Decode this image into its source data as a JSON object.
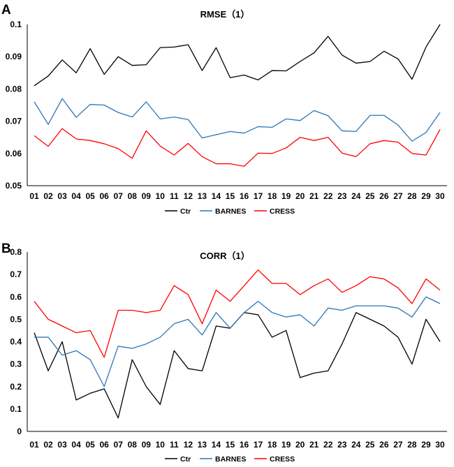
{
  "chart_data": [
    {
      "panel": "A",
      "type": "line",
      "title": "RMSE（1）",
      "xlabel": "",
      "ylabel": "",
      "categories": [
        "01",
        "02",
        "03",
        "04",
        "05",
        "06",
        "07",
        "08",
        "09",
        "10",
        "11",
        "12",
        "13",
        "14",
        "15",
        "16",
        "17",
        "18",
        "19",
        "20",
        "21",
        "22",
        "23",
        "24",
        "25",
        "26",
        "27",
        "28",
        "29",
        "30"
      ],
      "ylim": [
        0.05,
        0.1
      ],
      "yticks": [
        0.05,
        0.06,
        0.07,
        0.08,
        0.09,
        0.1
      ],
      "ytick_labels": [
        "0.05",
        "0.06",
        "0.07",
        "0.08",
        "0.09",
        "0.1"
      ],
      "legend_position": "bottom",
      "series": [
        {
          "name": "Ctr",
          "color": "#000000",
          "values": [
            0.081,
            0.084,
            0.089,
            0.085,
            0.0925,
            0.0845,
            0.09,
            0.0873,
            0.0875,
            0.0928,
            0.093,
            0.0937,
            0.0857,
            0.0928,
            0.0835,
            0.0843,
            0.0828,
            0.0857,
            0.0856,
            0.0885,
            0.0912,
            0.0963,
            0.0905,
            0.088,
            0.0885,
            0.0917,
            0.0893,
            0.083,
            0.093,
            0.1
          ]
        },
        {
          "name": "BARNES",
          "color": "#2E75B6",
          "values": [
            0.076,
            0.069,
            0.077,
            0.0712,
            0.0752,
            0.075,
            0.0727,
            0.0713,
            0.076,
            0.0707,
            0.0713,
            0.0705,
            0.0648,
            0.0658,
            0.0668,
            0.0663,
            0.0683,
            0.0681,
            0.0707,
            0.0702,
            0.0733,
            0.0717,
            0.067,
            0.0668,
            0.0718,
            0.0718,
            0.0688,
            0.0638,
            0.0665,
            0.0727
          ]
        },
        {
          "name": "CRESS",
          "color": "#FF0000",
          "values": [
            0.0655,
            0.0622,
            0.0677,
            0.0645,
            0.064,
            0.063,
            0.0615,
            0.0585,
            0.067,
            0.0623,
            0.0595,
            0.0631,
            0.059,
            0.0568,
            0.0568,
            0.056,
            0.0601,
            0.06,
            0.0617,
            0.065,
            0.064,
            0.065,
            0.0601,
            0.059,
            0.063,
            0.064,
            0.0635,
            0.06,
            0.0595,
            0.0674
          ]
        }
      ]
    },
    {
      "panel": "B",
      "type": "line",
      "title": "CORR（1）",
      "xlabel": "",
      "ylabel": "",
      "categories": [
        "01",
        "02",
        "03",
        "04",
        "05",
        "06",
        "07",
        "08",
        "09",
        "10",
        "11",
        "12",
        "13",
        "14",
        "15",
        "16",
        "17",
        "18",
        "19",
        "20",
        "21",
        "22",
        "23",
        "24",
        "25",
        "26",
        "27",
        "28",
        "29",
        "30"
      ],
      "ylim": [
        0,
        0.8
      ],
      "yticks": [
        0,
        0.1,
        0.2,
        0.3,
        0.4,
        0.5,
        0.6,
        0.7,
        0.8
      ],
      "ytick_labels": [
        "0",
        "0.1",
        "0.2",
        "0.3",
        "0.4",
        "0.5",
        "0.6",
        "0.7",
        "0.8"
      ],
      "legend_position": "bottom",
      "series": [
        {
          "name": "Ctr",
          "color": "#000000",
          "values": [
            0.44,
            0.27,
            0.4,
            0.14,
            0.17,
            0.19,
            0.06,
            0.32,
            0.2,
            0.12,
            0.36,
            0.28,
            0.27,
            0.47,
            0.46,
            0.53,
            0.52,
            0.42,
            0.45,
            0.24,
            0.26,
            0.27,
            0.39,
            0.53,
            0.5,
            0.47,
            0.42,
            0.3,
            0.5,
            0.4
          ]
        },
        {
          "name": "BARNES",
          "color": "#2E75B6",
          "values": [
            0.42,
            0.42,
            0.34,
            0.36,
            0.32,
            0.2,
            0.38,
            0.37,
            0.39,
            0.42,
            0.48,
            0.5,
            0.43,
            0.53,
            0.46,
            0.53,
            0.58,
            0.53,
            0.51,
            0.52,
            0.47,
            0.55,
            0.54,
            0.56,
            0.56,
            0.56,
            0.55,
            0.51,
            0.6,
            0.57
          ]
        },
        {
          "name": "CRESS",
          "color": "#FF0000",
          "values": [
            0.58,
            0.5,
            0.47,
            0.44,
            0.45,
            0.33,
            0.54,
            0.54,
            0.53,
            0.54,
            0.65,
            0.61,
            0.48,
            0.63,
            0.58,
            0.65,
            0.72,
            0.66,
            0.66,
            0.61,
            0.65,
            0.68,
            0.62,
            0.65,
            0.69,
            0.68,
            0.64,
            0.57,
            0.68,
            0.63
          ]
        }
      ]
    }
  ]
}
